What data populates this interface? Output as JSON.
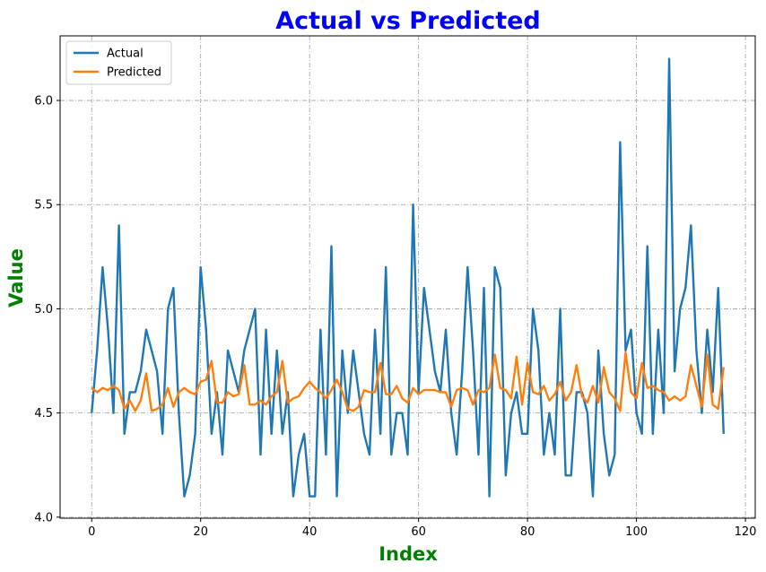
{
  "chart_data": {
    "type": "line",
    "title": "Actual vs Predicted",
    "xlabel": "Index",
    "ylabel": "Value",
    "xlim": [
      -5.8,
      121.8
    ],
    "ylim": [
      3.995,
      6.31
    ],
    "xticks": [
      0,
      20,
      40,
      60,
      80,
      100,
      120
    ],
    "yticks": [
      4.0,
      4.5,
      5.0,
      5.5,
      6.0
    ],
    "xtick_labels": [
      "0",
      "20",
      "40",
      "60",
      "80",
      "100",
      "120"
    ],
    "ytick_labels": [
      "4.0",
      "4.5",
      "5.0",
      "5.5",
      "6.0"
    ],
    "grid": true,
    "legend_position": "top-left",
    "series": [
      {
        "name": "Actual",
        "color": "#1f77b4",
        "values": [
          4.5,
          4.8,
          5.2,
          4.9,
          4.5,
          5.4,
          4.4,
          4.6,
          4.6,
          4.7,
          4.9,
          4.8,
          4.7,
          4.4,
          5.0,
          5.1,
          4.5,
          4.1,
          4.2,
          4.4,
          5.2,
          4.9,
          4.4,
          4.6,
          4.3,
          4.8,
          4.7,
          4.6,
          4.8,
          4.9,
          5.0,
          4.3,
          4.9,
          4.4,
          4.8,
          4.4,
          4.6,
          4.1,
          4.3,
          4.4,
          4.1,
          4.1,
          4.9,
          4.3,
          5.3,
          4.1,
          4.8,
          4.5,
          4.8,
          4.6,
          4.4,
          4.3,
          4.9,
          4.4,
          5.2,
          4.3,
          4.5,
          4.5,
          4.3,
          5.5,
          4.6,
          5.1,
          4.9,
          4.7,
          4.6,
          4.9,
          4.5,
          4.3,
          4.7,
          5.2,
          4.8,
          4.3,
          5.1,
          4.1,
          5.2,
          5.1,
          4.2,
          4.5,
          4.6,
          4.4,
          4.4,
          5.0,
          4.8,
          4.3,
          4.5,
          4.3,
          5.0,
          4.2,
          4.2,
          4.6,
          4.6,
          4.5,
          4.1,
          4.8,
          4.4,
          4.2,
          4.3,
          5.8,
          4.8,
          4.9,
          4.5,
          4.4,
          5.3,
          4.4,
          4.9,
          4.5,
          6.2,
          4.7,
          5.0,
          5.1,
          5.4,
          4.8,
          4.5,
          4.9,
          4.6,
          5.1,
          4.4
        ]
      },
      {
        "name": "Predicted",
        "color": "#ff7f0e",
        "values": [
          4.62,
          4.6,
          4.62,
          4.61,
          4.63,
          4.61,
          4.52,
          4.56,
          4.51,
          4.56,
          4.69,
          4.51,
          4.52,
          4.54,
          4.62,
          4.53,
          4.6,
          4.62,
          4.6,
          4.59,
          4.65,
          4.66,
          4.75,
          4.55,
          4.55,
          4.6,
          4.58,
          4.59,
          4.73,
          4.54,
          4.54,
          4.56,
          4.54,
          4.58,
          4.6,
          4.75,
          4.55,
          4.57,
          4.58,
          4.62,
          4.65,
          4.62,
          4.6,
          4.57,
          4.61,
          4.66,
          4.6,
          4.52,
          4.51,
          4.53,
          4.61,
          4.6,
          4.6,
          4.74,
          4.59,
          4.59,
          4.63,
          4.57,
          4.55,
          4.62,
          4.59,
          4.61,
          4.61,
          4.61,
          4.6,
          4.6,
          4.53,
          4.61,
          4.62,
          4.61,
          4.54,
          4.61,
          4.6,
          4.62,
          4.78,
          4.62,
          4.61,
          4.57,
          4.77,
          4.54,
          4.74,
          4.6,
          4.59,
          4.63,
          4.56,
          4.59,
          4.65,
          4.56,
          4.6,
          4.73,
          4.58,
          4.55,
          4.63,
          4.55,
          4.72,
          4.6,
          4.57,
          4.51,
          4.79,
          4.6,
          4.57,
          4.74,
          4.62,
          4.63,
          4.61,
          4.6,
          4.56,
          4.58,
          4.56,
          4.58,
          4.73,
          4.63,
          4.53,
          4.78,
          4.54,
          4.52,
          4.72
        ]
      }
    ]
  }
}
